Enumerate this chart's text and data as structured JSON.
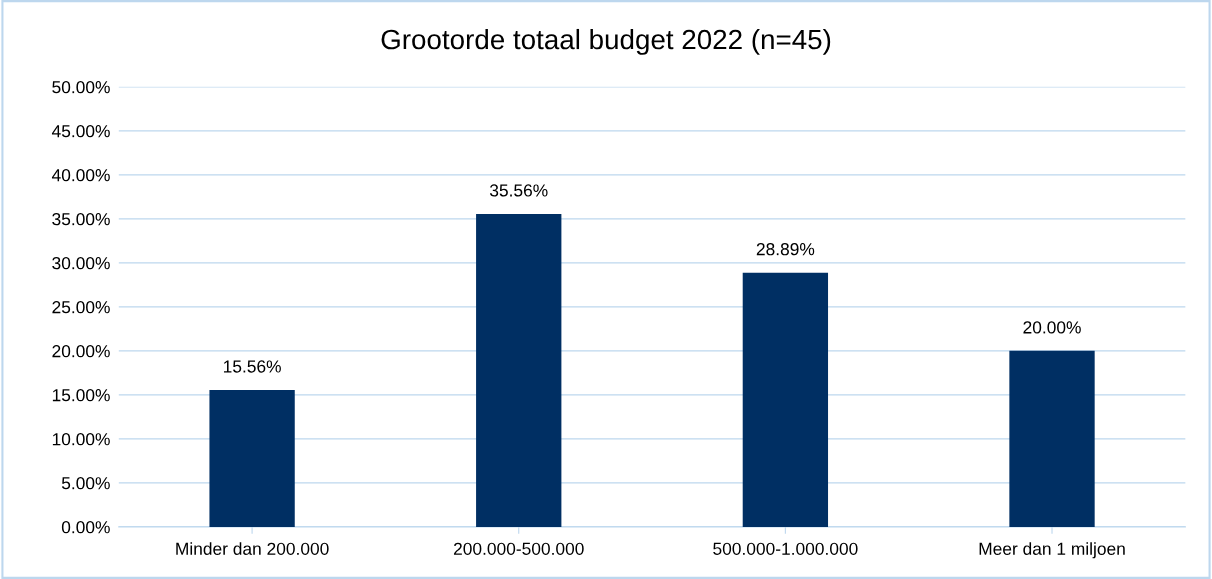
{
  "chart_data": {
    "type": "bar",
    "title": "Grootorde totaal budget 2022 (n=45)",
    "categories": [
      "Minder dan 200.000",
      "200.000-500.000",
      "500.000-1.000.000",
      "Meer dan 1 miljoen"
    ],
    "values": [
      15.56,
      35.56,
      28.89,
      20.0
    ],
    "value_labels": [
      "15.56%",
      "35.56%",
      "28.89%",
      "20.00%"
    ],
    "color": "#002f63",
    "ylim": [
      0,
      50
    ],
    "yticks": [
      {
        "value": 0,
        "label": "0.00%"
      },
      {
        "value": 5,
        "label": "5.00%"
      },
      {
        "value": 10,
        "label": "10.00%"
      },
      {
        "value": 15,
        "label": "15.00%"
      },
      {
        "value": 20,
        "label": "20.00%"
      },
      {
        "value": 25,
        "label": "25.00%"
      },
      {
        "value": 30,
        "label": "30.00%"
      },
      {
        "value": 35,
        "label": "35.00%"
      },
      {
        "value": 40,
        "label": "40.00%"
      },
      {
        "value": 45,
        "label": "45.00%"
      },
      {
        "value": 50,
        "label": "50.00%"
      }
    ],
    "grid": "y"
  }
}
